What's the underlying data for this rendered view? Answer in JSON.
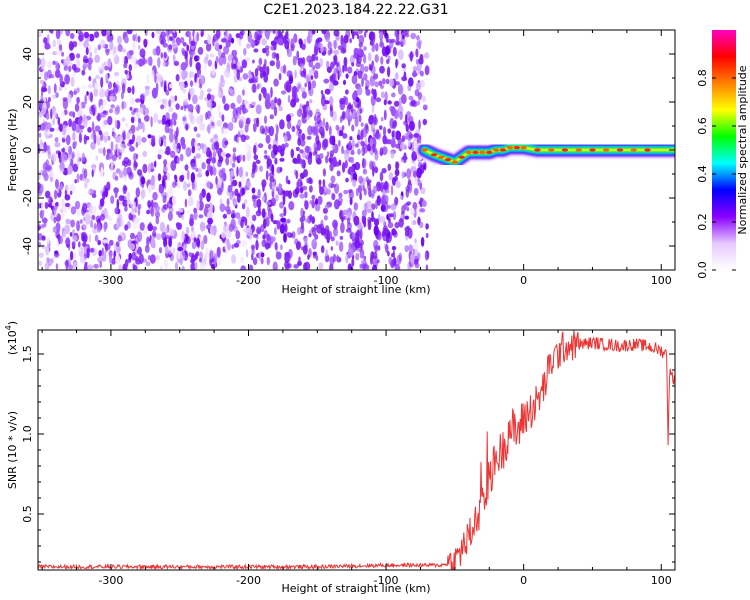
{
  "title": "C2E1.2023.184.22.22.G31",
  "chart_data": [
    {
      "type": "heatmap",
      "xlabel": "Height of straight line (km)",
      "ylabel": "Frequency (Hz)",
      "xlim": [
        -353,
        110
      ],
      "ylim": [
        -50,
        50
      ],
      "xticks": [
        -300,
        -200,
        -100,
        0,
        100
      ],
      "yticks": [
        -40,
        -20,
        0,
        20,
        40
      ],
      "grid": false,
      "noise_region_x": [
        -353,
        -70
      ],
      "signal_trace": {
        "x": [
          -72,
          -65,
          -60,
          -55,
          -50,
          -45,
          -40,
          -35,
          -30,
          -25,
          -20,
          -15,
          -10,
          -5,
          0,
          10,
          20,
          30,
          40,
          50,
          60,
          70,
          80,
          90,
          100,
          110
        ],
        "y": [
          0,
          -2,
          -3,
          -4,
          -5,
          -3,
          -1,
          -1,
          -1,
          -1,
          0,
          0,
          1,
          1,
          1,
          0,
          0,
          0,
          0,
          0,
          0,
          0,
          0,
          0,
          0,
          0
        ]
      },
      "colorbar": {
        "label": "Normalized spectral amplitude",
        "ticks": [
          "0.0",
          "0.2",
          "0.4",
          "0.6",
          "0.8"
        ],
        "range": [
          0,
          1
        ],
        "colors": [
          "#ffffff",
          "#e6c8ff",
          "#8a00ff",
          "#0000ff",
          "#00ffff",
          "#00ff00",
          "#ffff00",
          "#ff8000",
          "#ff0000",
          "#ff00c0"
        ]
      }
    },
    {
      "type": "line",
      "xlabel": "Height of straight line (km)",
      "ylabel": "SNR (10 * v/v)",
      "scale_label": "(x10",
      "scale_exp": "4",
      "scale_close": ")",
      "xlim": [
        -353,
        110
      ],
      "ylim": [
        0.15,
        1.65
      ],
      "xticks": [
        -300,
        -200,
        -100,
        0,
        100
      ],
      "yticks": [
        "0.5",
        "1.0",
        "1.5"
      ],
      "ytick_values": [
        0.5,
        1.0,
        1.5
      ],
      "grid": false,
      "color": "#ee3333",
      "series": [
        {
          "x": [
            -353,
            -300,
            -250,
            -200,
            -150,
            -100,
            -80,
            -60,
            -50,
            -45,
            -40,
            -35,
            -30,
            -25,
            -20,
            -15,
            -10,
            -5,
            0,
            5,
            10,
            15,
            20,
            25,
            30,
            40,
            50,
            60,
            70,
            80,
            90,
            100,
            104,
            105,
            106,
            110
          ],
          "y": [
            0.17,
            0.17,
            0.17,
            0.17,
            0.17,
            0.18,
            0.18,
            0.18,
            0.2,
            0.28,
            0.35,
            0.45,
            0.55,
            0.72,
            0.85,
            0.9,
            1.05,
            1.0,
            1.1,
            1.15,
            1.2,
            1.3,
            1.45,
            1.5,
            1.55,
            1.56,
            1.57,
            1.56,
            1.55,
            1.56,
            1.55,
            1.52,
            1.5,
            0.95,
            1.38,
            1.34
          ]
        }
      ]
    }
  ]
}
